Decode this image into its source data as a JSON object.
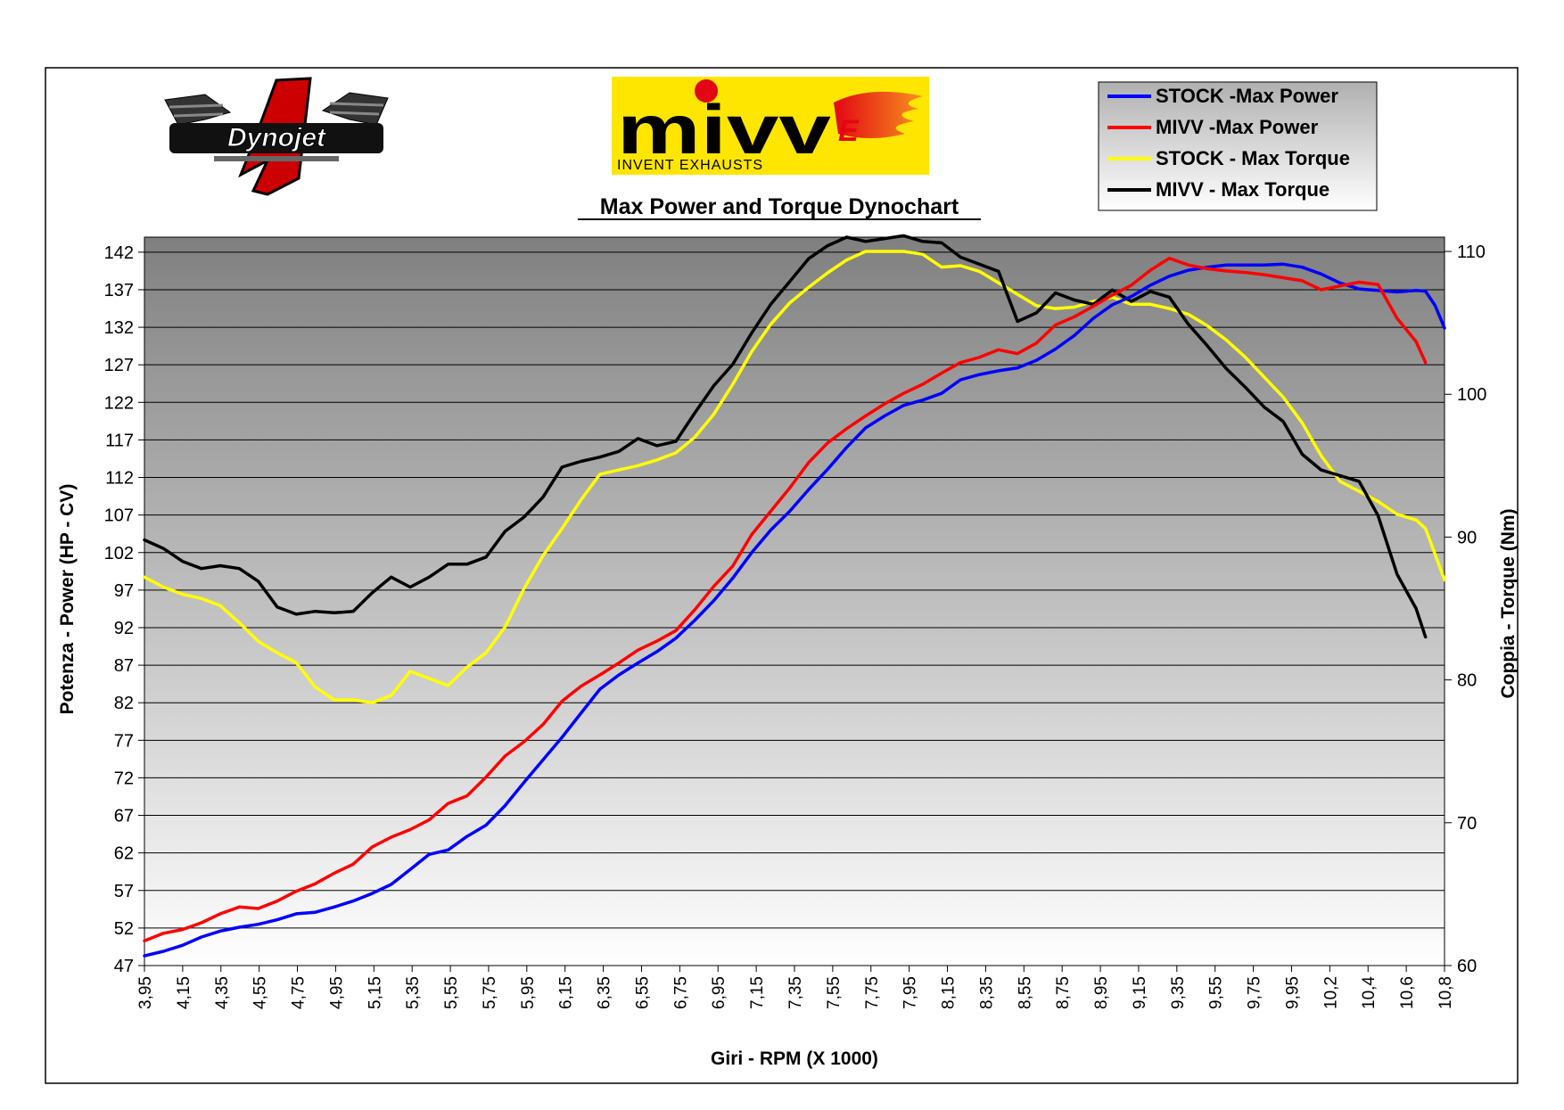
{
  "header": {
    "title": "Max Power and Torque Dynochart",
    "dynojet_logo_text": "Dynojet",
    "dynojet_logo_numeral": "1",
    "mivv_logo_text": "mivv",
    "mivv_tagline": "INVENT EXHAUSTS"
  },
  "colors": {
    "stock_power": "#0000ff",
    "mivv_power": "#ff0000",
    "stock_torque": "#ffff00",
    "mivv_torque": "#000000",
    "mivv_brand_yellow": "#ffe600",
    "mivv_brand_red": "#e30613"
  },
  "chart_data": {
    "type": "line",
    "title": "Max Power and Torque Dynochart",
    "xlabel": "Giri - RPM (X 1000)",
    "ylabel": "Potenza - Power (HP - CV)",
    "y2label": "Coppia - Torque (Nm)",
    "xlim": [
      3.95,
      10.8
    ],
    "ylim": [
      47,
      144
    ],
    "y2lim": [
      60,
      111
    ],
    "x_ticks": [
      "3,95",
      "4,15",
      "4,35",
      "4,55",
      "4,75",
      "4,95",
      "5,15",
      "5,35",
      "5,55",
      "5,75",
      "5,95",
      "6,15",
      "6,35",
      "6,55",
      "6,75",
      "6,95",
      "7,15",
      "7,35",
      "7,55",
      "7,75",
      "7,95",
      "8,15",
      "8,35",
      "8,55",
      "8,75",
      "8,95",
      "9,15",
      "9,35",
      "9,55",
      "9,75",
      "9,95",
      "10,2",
      "10,4",
      "10,6",
      "10,8"
    ],
    "y_ticks": [
      47,
      52,
      57,
      62,
      67,
      72,
      77,
      82,
      87,
      92,
      97,
      102,
      107,
      112,
      117,
      122,
      127,
      132,
      137,
      142
    ],
    "y2_ticks": [
      60,
      70,
      80,
      90,
      100,
      110
    ],
    "grid": true,
    "legend_position": "top-right",
    "series": [
      {
        "name": "STOCK -Max Power",
        "axis": "left",
        "color": "#0000ff",
        "points": [
          [
            3.95,
            48.3
          ],
          [
            4.05,
            48.9
          ],
          [
            4.15,
            49.7
          ],
          [
            4.25,
            50.8
          ],
          [
            4.35,
            51.6
          ],
          [
            4.45,
            52.1
          ],
          [
            4.55,
            52.5
          ],
          [
            4.65,
            53.1
          ],
          [
            4.75,
            53.9
          ],
          [
            4.85,
            54.1
          ],
          [
            4.95,
            54.8
          ],
          [
            5.05,
            55.6
          ],
          [
            5.15,
            56.6
          ],
          [
            5.25,
            57.8
          ],
          [
            5.35,
            59.8
          ],
          [
            5.45,
            61.8
          ],
          [
            5.55,
            62.4
          ],
          [
            5.65,
            64.2
          ],
          [
            5.75,
            65.7
          ],
          [
            5.85,
            68.3
          ],
          [
            5.95,
            71.4
          ],
          [
            6.05,
            74.4
          ],
          [
            6.15,
            77.4
          ],
          [
            6.25,
            80.6
          ],
          [
            6.35,
            83.8
          ],
          [
            6.45,
            85.7
          ],
          [
            6.55,
            87.3
          ],
          [
            6.65,
            88.8
          ],
          [
            6.75,
            90.6
          ],
          [
            6.85,
            93.0
          ],
          [
            6.95,
            95.6
          ],
          [
            7.05,
            98.6
          ],
          [
            7.15,
            102.0
          ],
          [
            7.25,
            105.0
          ],
          [
            7.35,
            107.5
          ],
          [
            7.45,
            110.4
          ],
          [
            7.55,
            113.1
          ],
          [
            7.65,
            116.0
          ],
          [
            7.75,
            118.6
          ],
          [
            7.85,
            120.2
          ],
          [
            7.95,
            121.6
          ],
          [
            8.05,
            122.3
          ],
          [
            8.15,
            123.2
          ],
          [
            8.25,
            125.0
          ],
          [
            8.35,
            125.7
          ],
          [
            8.45,
            126.2
          ],
          [
            8.55,
            126.6
          ],
          [
            8.65,
            127.6
          ],
          [
            8.75,
            129.1
          ],
          [
            8.85,
            130.9
          ],
          [
            8.95,
            133.2
          ],
          [
            9.05,
            135.0
          ],
          [
            9.15,
            136.1
          ],
          [
            9.25,
            137.6
          ],
          [
            9.35,
            138.8
          ],
          [
            9.45,
            139.6
          ],
          [
            9.55,
            140.0
          ],
          [
            9.65,
            140.3
          ],
          [
            9.75,
            140.3
          ],
          [
            9.85,
            140.3
          ],
          [
            9.95,
            140.4
          ],
          [
            10.05,
            140.0
          ],
          [
            10.15,
            139.1
          ],
          [
            10.25,
            137.9
          ],
          [
            10.35,
            137.1
          ],
          [
            10.45,
            136.9
          ],
          [
            10.55,
            136.7
          ],
          [
            10.65,
            136.9
          ],
          [
            10.7,
            136.8
          ],
          [
            10.75,
            134.9
          ],
          [
            10.8,
            131.9
          ]
        ]
      },
      {
        "name": "MIVV -Max Power",
        "axis": "left",
        "color": "#ff0000",
        "points": [
          [
            3.95,
            50.3
          ],
          [
            4.05,
            51.3
          ],
          [
            4.15,
            51.8
          ],
          [
            4.25,
            52.7
          ],
          [
            4.35,
            53.9
          ],
          [
            4.45,
            54.8
          ],
          [
            4.55,
            54.6
          ],
          [
            4.65,
            55.6
          ],
          [
            4.75,
            56.9
          ],
          [
            4.85,
            57.9
          ],
          [
            4.95,
            59.3
          ],
          [
            5.05,
            60.5
          ],
          [
            5.15,
            62.8
          ],
          [
            5.25,
            64.1
          ],
          [
            5.35,
            65.1
          ],
          [
            5.45,
            66.4
          ],
          [
            5.55,
            68.6
          ],
          [
            5.65,
            69.6
          ],
          [
            5.75,
            72.1
          ],
          [
            5.85,
            74.9
          ],
          [
            5.95,
            76.8
          ],
          [
            6.05,
            79.1
          ],
          [
            6.15,
            82.2
          ],
          [
            6.25,
            84.2
          ],
          [
            6.35,
            85.7
          ],
          [
            6.45,
            87.3
          ],
          [
            6.55,
            89.0
          ],
          [
            6.65,
            90.2
          ],
          [
            6.75,
            91.6
          ],
          [
            6.85,
            94.4
          ],
          [
            6.95,
            97.5
          ],
          [
            7.05,
            100.2
          ],
          [
            7.15,
            104.4
          ],
          [
            7.25,
            107.5
          ],
          [
            7.35,
            110.6
          ],
          [
            7.45,
            114.0
          ],
          [
            7.55,
            116.6
          ],
          [
            7.65,
            118.5
          ],
          [
            7.75,
            120.2
          ],
          [
            7.85,
            121.8
          ],
          [
            7.95,
            123.2
          ],
          [
            8.05,
            124.4
          ],
          [
            8.15,
            125.9
          ],
          [
            8.25,
            127.3
          ],
          [
            8.35,
            128.0
          ],
          [
            8.45,
            129.0
          ],
          [
            8.55,
            128.5
          ],
          [
            8.65,
            129.9
          ],
          [
            8.75,
            132.3
          ],
          [
            8.85,
            133.4
          ],
          [
            8.95,
            134.8
          ],
          [
            9.05,
            136.3
          ],
          [
            9.15,
            137.6
          ],
          [
            9.25,
            139.6
          ],
          [
            9.35,
            141.2
          ],
          [
            9.45,
            140.3
          ],
          [
            9.55,
            139.8
          ],
          [
            9.65,
            139.5
          ],
          [
            9.75,
            139.3
          ],
          [
            9.85,
            139.0
          ],
          [
            9.95,
            138.6
          ],
          [
            10.05,
            138.2
          ],
          [
            10.15,
            137.0
          ],
          [
            10.25,
            137.5
          ],
          [
            10.35,
            138.0
          ],
          [
            10.45,
            137.7
          ],
          [
            10.55,
            133.2
          ],
          [
            10.65,
            130.1
          ],
          [
            10.7,
            127.3
          ]
        ]
      },
      {
        "name": "STOCK - Max Torque",
        "axis": "right",
        "color": "#ffff00",
        "points": [
          [
            3.95,
            87.2
          ],
          [
            4.05,
            86.5
          ],
          [
            4.15,
            86.0
          ],
          [
            4.25,
            85.7
          ],
          [
            4.35,
            85.2
          ],
          [
            4.45,
            84.0
          ],
          [
            4.55,
            82.7
          ],
          [
            4.65,
            81.9
          ],
          [
            4.75,
            81.2
          ],
          [
            4.85,
            79.5
          ],
          [
            4.95,
            78.6
          ],
          [
            5.05,
            78.6
          ],
          [
            5.15,
            78.4
          ],
          [
            5.25,
            78.9
          ],
          [
            5.35,
            80.6
          ],
          [
            5.45,
            80.1
          ],
          [
            5.55,
            79.6
          ],
          [
            5.65,
            80.9
          ],
          [
            5.75,
            81.9
          ],
          [
            5.85,
            83.7
          ],
          [
            5.95,
            86.4
          ],
          [
            6.05,
            88.7
          ],
          [
            6.15,
            90.6
          ],
          [
            6.25,
            92.6
          ],
          [
            6.35,
            94.4
          ],
          [
            6.45,
            94.7
          ],
          [
            6.55,
            95.0
          ],
          [
            6.65,
            95.4
          ],
          [
            6.75,
            95.9
          ],
          [
            6.85,
            97.0
          ],
          [
            6.95,
            98.6
          ],
          [
            7.05,
            100.7
          ],
          [
            7.15,
            103.0
          ],
          [
            7.25,
            104.9
          ],
          [
            7.35,
            106.4
          ],
          [
            7.45,
            107.5
          ],
          [
            7.55,
            108.5
          ],
          [
            7.65,
            109.4
          ],
          [
            7.75,
            110.0
          ],
          [
            7.85,
            110.0
          ],
          [
            7.95,
            110.0
          ],
          [
            8.05,
            109.8
          ],
          [
            8.15,
            108.9
          ],
          [
            8.25,
            109.0
          ],
          [
            8.35,
            108.6
          ],
          [
            8.45,
            107.8
          ],
          [
            8.55,
            107.0
          ],
          [
            8.65,
            106.2
          ],
          [
            8.75,
            106.0
          ],
          [
            8.85,
            106.1
          ],
          [
            8.95,
            106.5
          ],
          [
            9.05,
            106.8
          ],
          [
            9.15,
            106.3
          ],
          [
            9.25,
            106.3
          ],
          [
            9.35,
            106.0
          ],
          [
            9.45,
            105.6
          ],
          [
            9.55,
            104.8
          ],
          [
            9.65,
            103.8
          ],
          [
            9.75,
            102.6
          ],
          [
            9.85,
            101.2
          ],
          [
            9.95,
            99.8
          ],
          [
            10.05,
            98.0
          ],
          [
            10.15,
            95.7
          ],
          [
            10.25,
            93.9
          ],
          [
            10.35,
            93.2
          ],
          [
            10.45,
            92.5
          ],
          [
            10.55,
            91.6
          ],
          [
            10.65,
            91.2
          ],
          [
            10.7,
            90.6
          ],
          [
            10.75,
            88.8
          ],
          [
            10.8,
            87.0
          ]
        ]
      },
      {
        "name": "MIVV - Max Torque",
        "axis": "right",
        "color": "#000000",
        "points": [
          [
            3.95,
            89.8
          ],
          [
            4.05,
            89.2
          ],
          [
            4.15,
            88.3
          ],
          [
            4.25,
            87.8
          ],
          [
            4.35,
            88.0
          ],
          [
            4.45,
            87.8
          ],
          [
            4.55,
            86.9
          ],
          [
            4.65,
            85.1
          ],
          [
            4.75,
            84.6
          ],
          [
            4.85,
            84.8
          ],
          [
            4.95,
            84.7
          ],
          [
            5.05,
            84.8
          ],
          [
            5.15,
            86.1
          ],
          [
            5.25,
            87.2
          ],
          [
            5.35,
            86.5
          ],
          [
            5.45,
            87.2
          ],
          [
            5.55,
            88.1
          ],
          [
            5.65,
            88.1
          ],
          [
            5.75,
            88.6
          ],
          [
            5.85,
            90.4
          ],
          [
            5.95,
            91.4
          ],
          [
            6.05,
            92.8
          ],
          [
            6.15,
            94.9
          ],
          [
            6.25,
            95.3
          ],
          [
            6.35,
            95.6
          ],
          [
            6.45,
            96.0
          ],
          [
            6.55,
            96.9
          ],
          [
            6.65,
            96.4
          ],
          [
            6.75,
            96.7
          ],
          [
            6.85,
            98.7
          ],
          [
            6.95,
            100.6
          ],
          [
            7.05,
            102.1
          ],
          [
            7.15,
            104.3
          ],
          [
            7.25,
            106.3
          ],
          [
            7.35,
            107.9
          ],
          [
            7.45,
            109.5
          ],
          [
            7.55,
            110.4
          ],
          [
            7.65,
            111.0
          ],
          [
            7.75,
            110.7
          ],
          [
            7.85,
            110.9
          ],
          [
            7.95,
            111.1
          ],
          [
            8.05,
            110.7
          ],
          [
            8.15,
            110.6
          ],
          [
            8.25,
            109.6
          ],
          [
            8.35,
            109.1
          ],
          [
            8.45,
            108.6
          ],
          [
            8.55,
            105.1
          ],
          [
            8.65,
            105.7
          ],
          [
            8.75,
            107.1
          ],
          [
            8.85,
            106.6
          ],
          [
            8.95,
            106.3
          ],
          [
            9.05,
            107.3
          ],
          [
            9.15,
            106.5
          ],
          [
            9.25,
            107.2
          ],
          [
            9.35,
            106.8
          ],
          [
            9.45,
            104.9
          ],
          [
            9.55,
            103.4
          ],
          [
            9.65,
            101.8
          ],
          [
            9.75,
            100.5
          ],
          [
            9.85,
            99.1
          ],
          [
            9.95,
            98.1
          ],
          [
            10.05,
            95.8
          ],
          [
            10.15,
            94.7
          ],
          [
            10.25,
            94.3
          ],
          [
            10.35,
            93.9
          ],
          [
            10.45,
            91.5
          ],
          [
            10.55,
            87.4
          ],
          [
            10.65,
            85.0
          ],
          [
            10.7,
            83.0
          ]
        ]
      }
    ]
  }
}
